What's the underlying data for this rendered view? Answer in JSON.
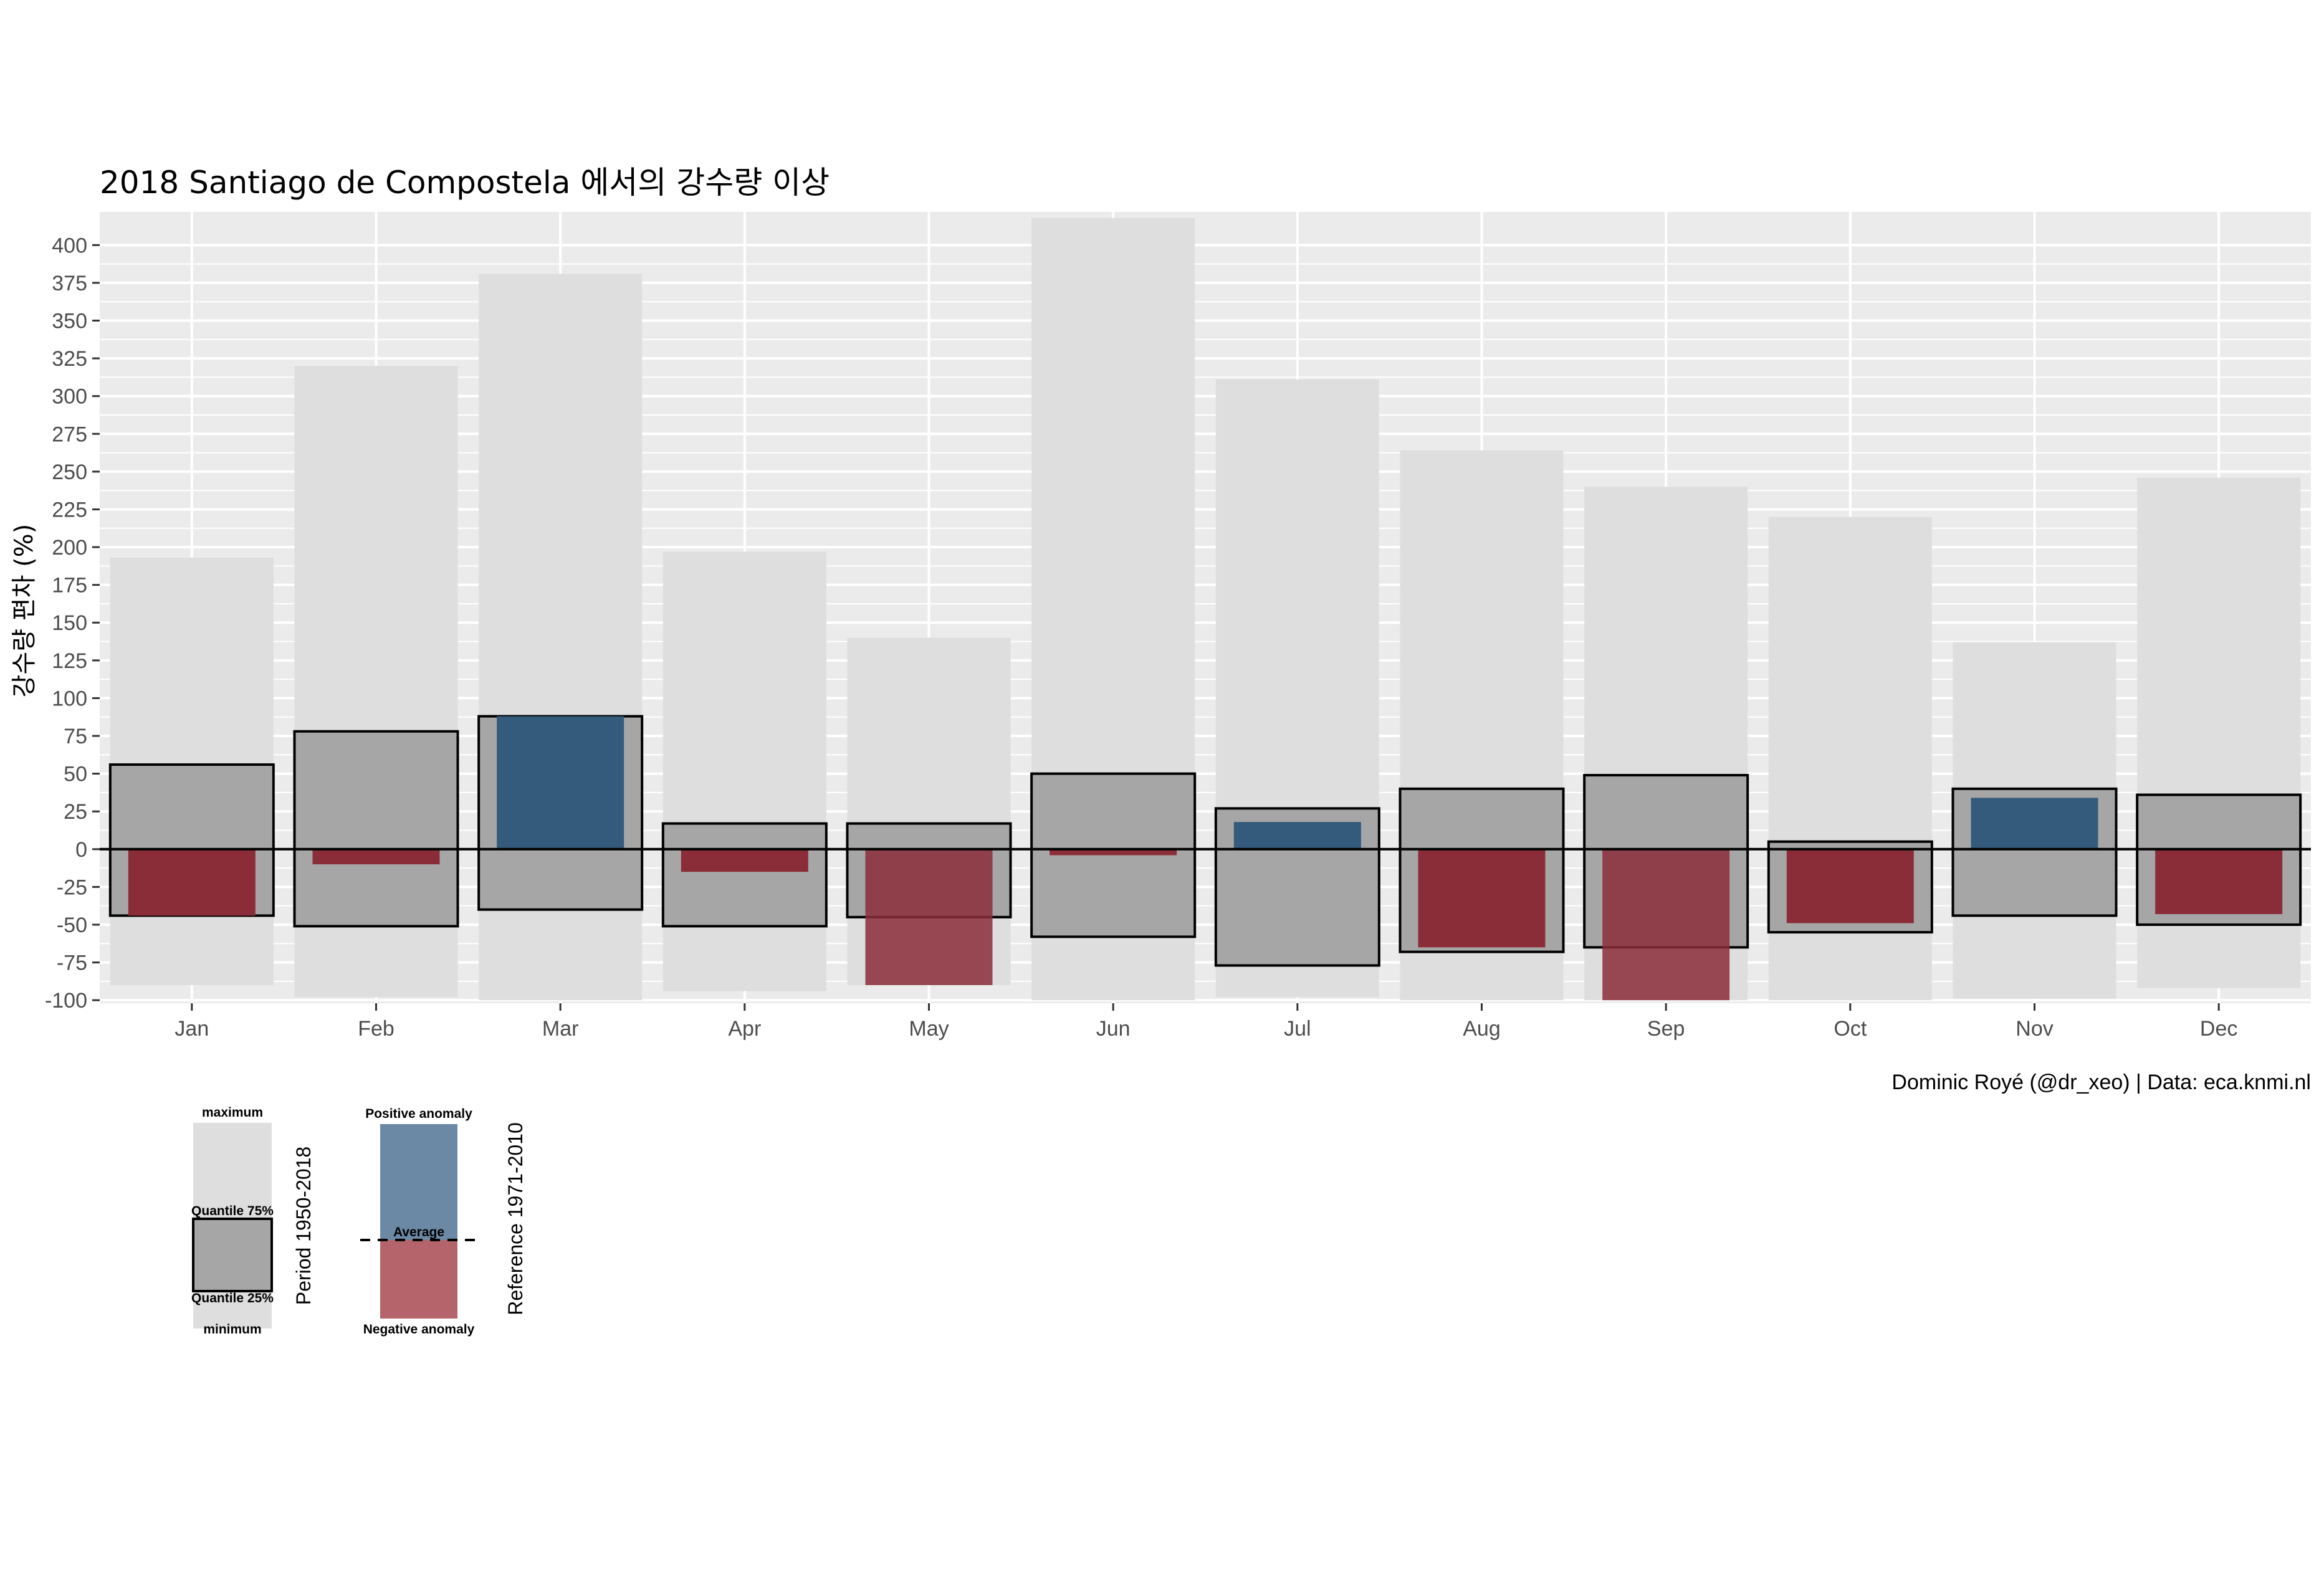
{
  "chart_data": {
    "type": "bar",
    "title": "2018 Santiago de Compostela 에서의 강수량 이상",
    "ylabel": "강수량 편차 (%)",
    "xlabel": "",
    "caption": "Dominic Royé (@dr_xeo) | Data: eca.knmi.nl",
    "ylim": [
      -102,
      422
    ],
    "yticks": [
      -100,
      -75,
      -50,
      -25,
      0,
      25,
      50,
      75,
      100,
      125,
      150,
      175,
      200,
      225,
      250,
      275,
      300,
      325,
      350,
      375,
      400
    ],
    "ytick_labels": [
      "-100",
      "-75",
      "-50",
      "-25",
      "0",
      "25",
      "50",
      "75",
      "100",
      "125",
      "150",
      "175",
      "200",
      "225",
      "250",
      "275",
      "300",
      "325",
      "350",
      "375",
      "400"
    ],
    "categories": [
      "Jan",
      "Feb",
      "Mar",
      "Apr",
      "May",
      "Jun",
      "Jul",
      "Aug",
      "Sep",
      "Oct",
      "Nov",
      "Dec"
    ],
    "series": [
      {
        "key": "minimum",
        "values": [
          -90,
          -98,
          -100,
          -94,
          -90,
          -100,
          -98,
          -100,
          -100,
          -100,
          -99,
          -92
        ]
      },
      {
        "key": "maximum",
        "values": [
          193,
          320,
          381,
          197,
          140,
          418,
          311,
          264,
          240,
          220,
          137,
          246
        ]
      },
      {
        "key": "quantile_25",
        "values": [
          -44,
          -51,
          -40,
          -51,
          -45,
          -58,
          -77,
          -68,
          -65,
          -55,
          -44,
          -50
        ]
      },
      {
        "key": "quantile_75",
        "values": [
          56,
          78,
          88,
          17,
          17,
          50,
          27,
          40,
          49,
          5,
          40,
          36
        ]
      },
      {
        "key": "anomaly_2018",
        "values": [
          -44,
          -10,
          88,
          -15,
          -90,
          -4,
          18,
          -65,
          -100,
          -49,
          34,
          -43
        ]
      }
    ],
    "grid": true,
    "legend_position": "bottom-left",
    "colors": {
      "panel_bg": "#ebebeb",
      "grid": "#ffffff",
      "range_bar": "#dedede",
      "quantile_box": "#a6a6a6",
      "positive": "#345a7c",
      "negative": "#8b2d38",
      "legend_positive": "#6b88a4",
      "legend_negative": "#b5646b"
    }
  },
  "legend": {
    "period": {
      "title": "Period 1950-2018",
      "maximum": "maximum",
      "q75": "Quantile 75%",
      "q25": "Quantile 25%",
      "minimum": "minimum"
    },
    "reference": {
      "title": "Reference 1971-2010",
      "positive": "Positive anomaly",
      "average": "Average",
      "negative": "Negative anomaly"
    }
  }
}
